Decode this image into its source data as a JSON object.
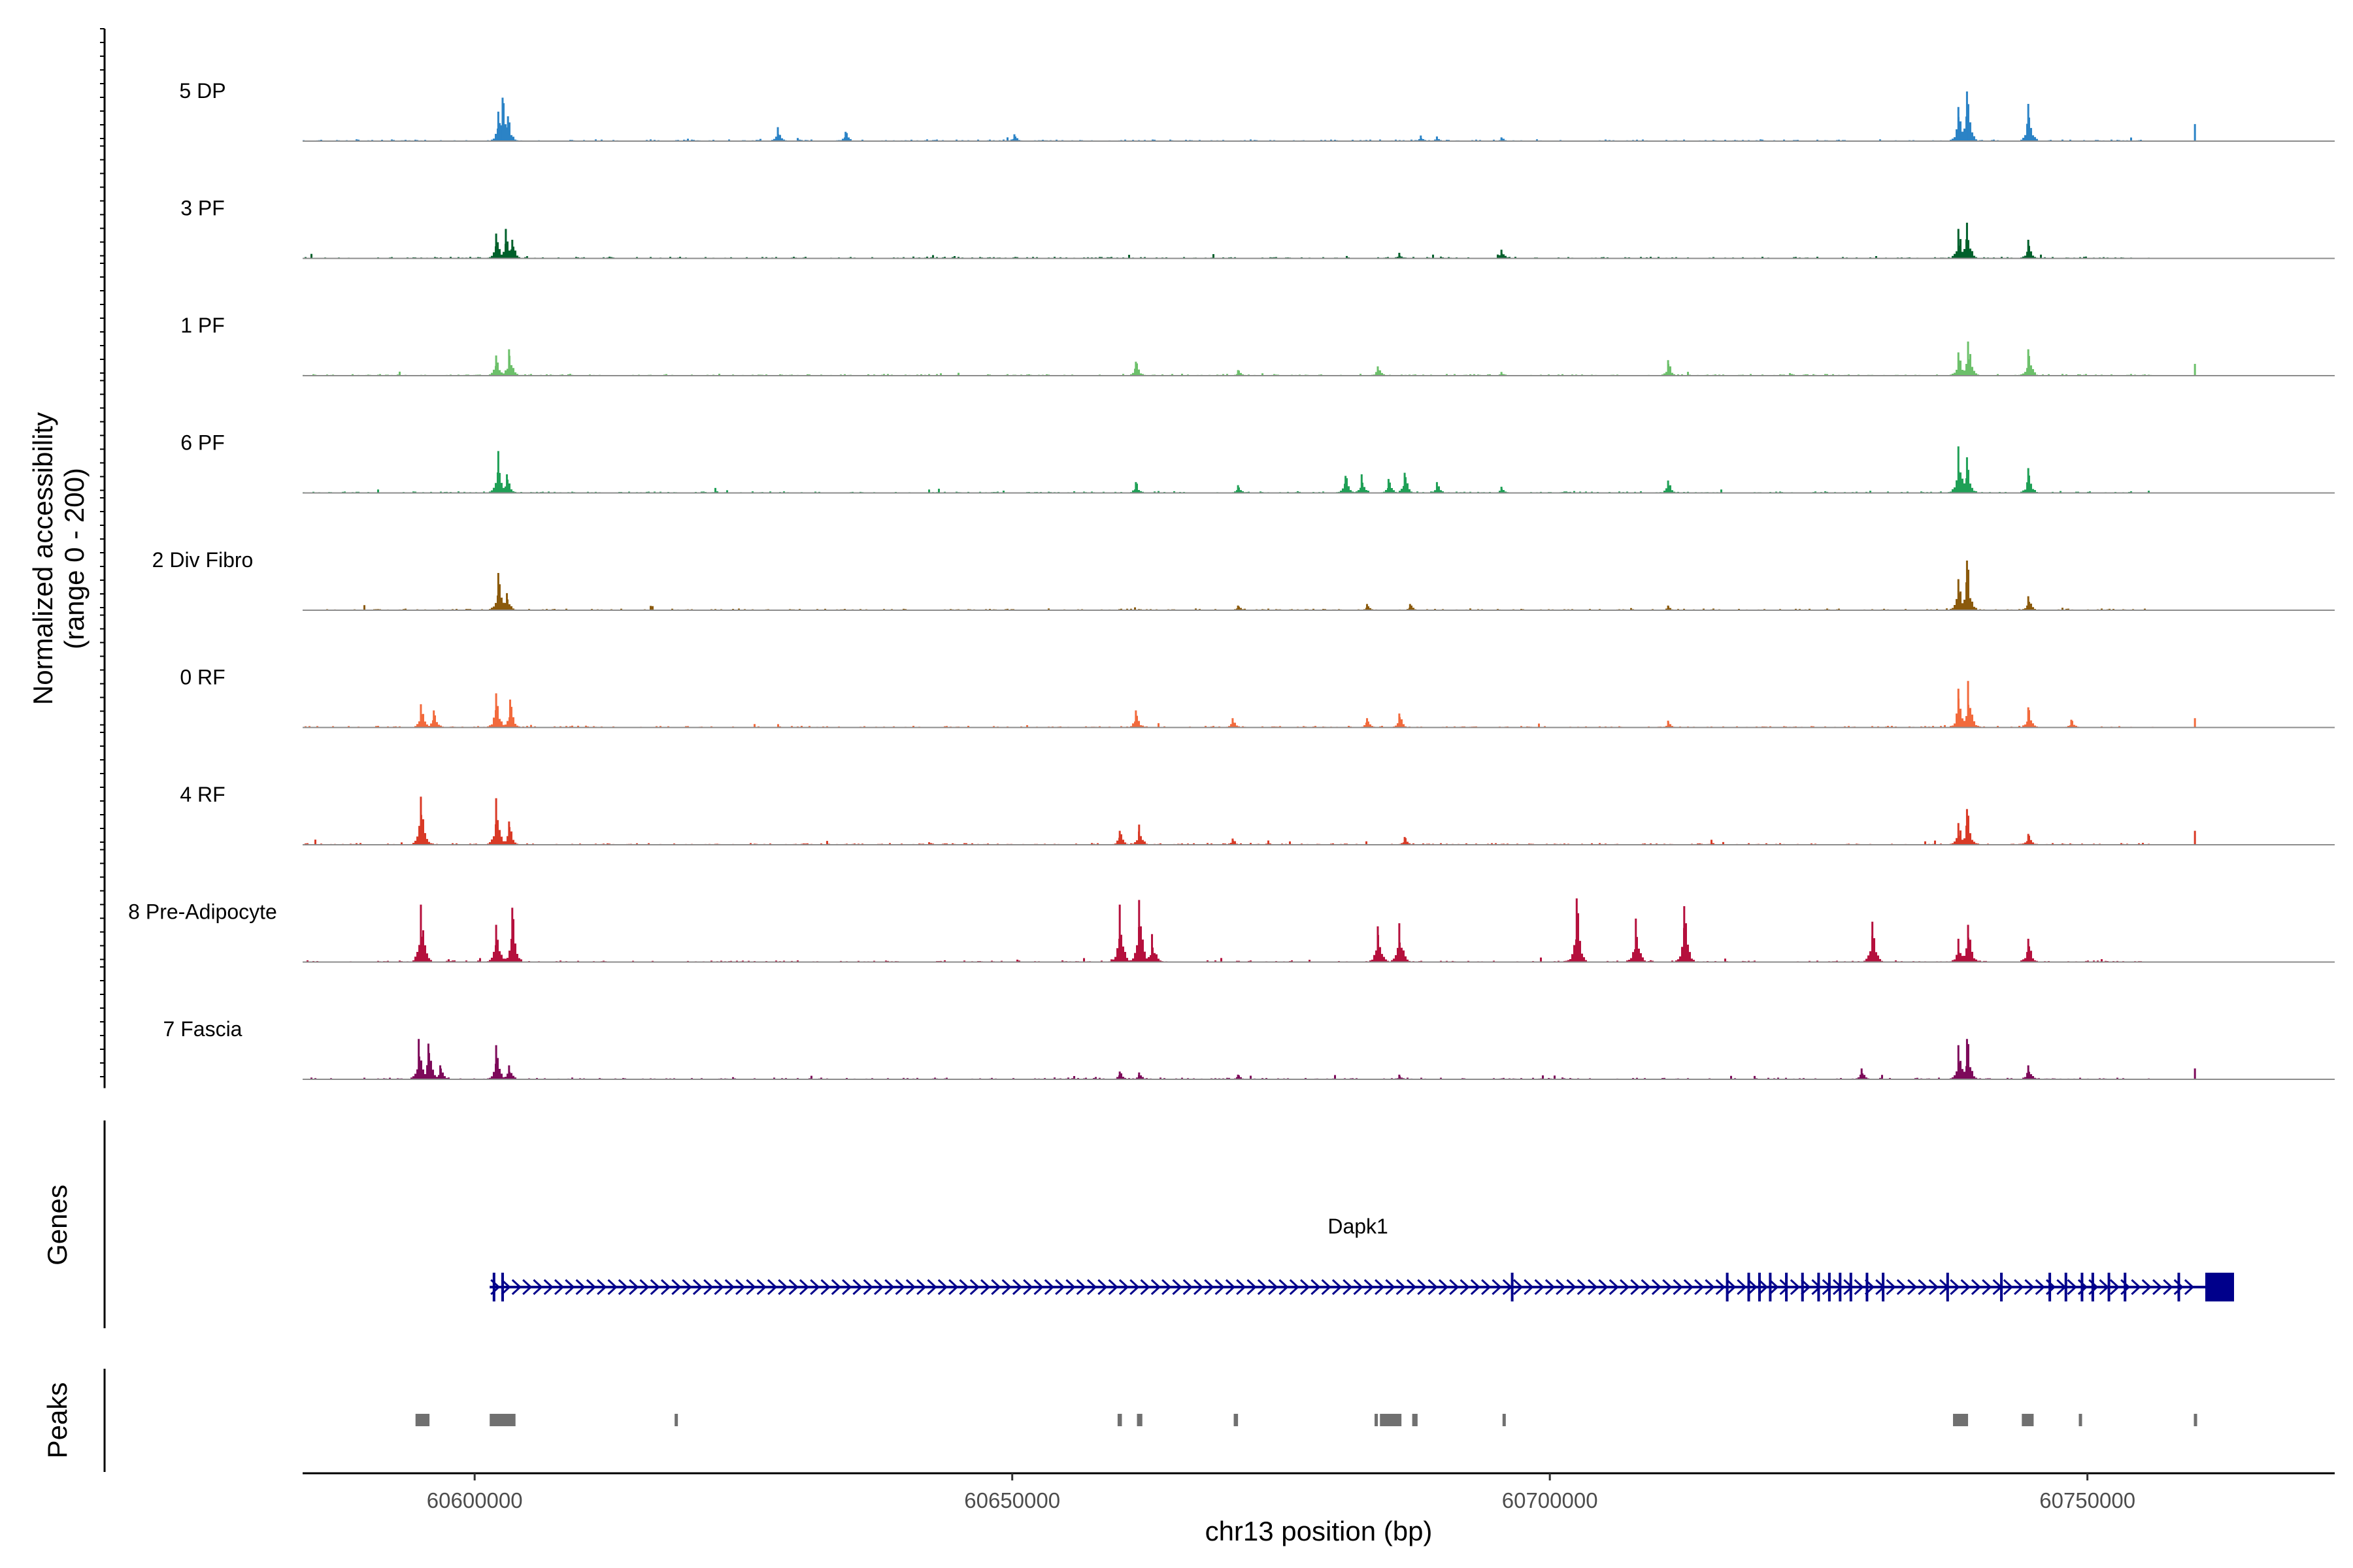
{
  "chart_data": {
    "type": "area",
    "title": "",
    "chromosome": "chr13",
    "xlabel": "chr13 position (bp)",
    "ylabel": "Normalized accessibility",
    "ylabel_range": "(range 0 - 200)",
    "ylim": [
      0,
      200
    ],
    "xlim": [
      60584000,
      60773000
    ],
    "x_ticks": [
      60600000,
      60650000,
      60700000,
      60750000
    ],
    "x_tick_labels": [
      "60600000",
      "60650000",
      "60700000",
      "60750000"
    ],
    "series": [
      {
        "name": "5 DP",
        "color": "#2b83c6",
        "peaks": [
          [
            60602200,
            95
          ],
          [
            60602600,
            140
          ],
          [
            60603100,
            80
          ],
          [
            60628200,
            45
          ],
          [
            60634500,
            30
          ],
          [
            60650200,
            22
          ],
          [
            60688000,
            18
          ],
          [
            60689500,
            15
          ],
          [
            60695500,
            12
          ],
          [
            60738000,
            110
          ],
          [
            60738800,
            160
          ],
          [
            60744500,
            120
          ],
          [
            60760000,
            55
          ]
        ]
      },
      {
        "name": "3 PF",
        "color": "#00602b",
        "peaks": [
          [
            60602000,
            80
          ],
          [
            60602900,
            95
          ],
          [
            60603500,
            60
          ],
          [
            60686000,
            18
          ],
          [
            60695500,
            28
          ],
          [
            60738000,
            95
          ],
          [
            60738800,
            115
          ],
          [
            60744500,
            60
          ]
        ]
      },
      {
        "name": "1 PF",
        "color": "#6cc06a",
        "peaks": [
          [
            60602000,
            65
          ],
          [
            60603200,
            85
          ],
          [
            60661500,
            45
          ],
          [
            60671000,
            18
          ],
          [
            60684000,
            30
          ],
          [
            60695500,
            12
          ],
          [
            60711000,
            50
          ],
          [
            60738000,
            75
          ],
          [
            60738900,
            110
          ],
          [
            60744500,
            85
          ],
          [
            60760000,
            38
          ]
        ]
      },
      {
        "name": "6 PF",
        "color": "#1fa056",
        "peaks": [
          [
            60602200,
            135
          ],
          [
            60603000,
            60
          ],
          [
            60661500,
            35
          ],
          [
            60671000,
            25
          ],
          [
            60681000,
            55
          ],
          [
            60682500,
            60
          ],
          [
            60685000,
            45
          ],
          [
            60686500,
            65
          ],
          [
            60689500,
            35
          ],
          [
            60695500,
            20
          ],
          [
            60711000,
            40
          ],
          [
            60738000,
            150
          ],
          [
            60738800,
            115
          ],
          [
            60744500,
            80
          ]
        ]
      },
      {
        "name": "2 Div Fibro",
        "color": "#8b5a0c",
        "peaks": [
          [
            60602200,
            120
          ],
          [
            60603000,
            55
          ],
          [
            60671000,
            15
          ],
          [
            60683000,
            20
          ],
          [
            60687000,
            20
          ],
          [
            60711000,
            15
          ],
          [
            60738000,
            100
          ],
          [
            60738800,
            160
          ],
          [
            60744500,
            45
          ]
        ]
      },
      {
        "name": "0 RF",
        "color": "#f26a3c",
        "peaks": [
          [
            60595000,
            75
          ],
          [
            60596200,
            55
          ],
          [
            60602000,
            110
          ],
          [
            60603300,
            90
          ],
          [
            60661500,
            55
          ],
          [
            60670500,
            30
          ],
          [
            60683000,
            30
          ],
          [
            60686000,
            45
          ],
          [
            60711000,
            22
          ],
          [
            60738000,
            125
          ],
          [
            60738900,
            150
          ],
          [
            60744500,
            65
          ],
          [
            60748500,
            25
          ],
          [
            60760000,
            30
          ]
        ]
      },
      {
        "name": "4 RF",
        "color": "#d93a26",
        "peaks": [
          [
            60595000,
            155
          ],
          [
            60602000,
            150
          ],
          [
            60603200,
            75
          ],
          [
            60660000,
            45
          ],
          [
            60661800,
            65
          ],
          [
            60670500,
            20
          ],
          [
            60686500,
            25
          ],
          [
            60738000,
            70
          ],
          [
            60738800,
            115
          ],
          [
            60744500,
            35
          ],
          [
            60760000,
            45
          ]
        ]
      },
      {
        "name": "8 Pre-Adipocyte",
        "color": "#b5103d",
        "peaks": [
          [
            60595000,
            185
          ],
          [
            60602000,
            120
          ],
          [
            60603500,
            175
          ],
          [
            60660000,
            185
          ],
          [
            60661800,
            200
          ],
          [
            60663000,
            90
          ],
          [
            60684000,
            115
          ],
          [
            60686000,
            125
          ],
          [
            60702500,
            205
          ],
          [
            60708000,
            140
          ],
          [
            60712500,
            180
          ],
          [
            60730000,
            130
          ],
          [
            60738000,
            75
          ],
          [
            60738900,
            120
          ],
          [
            60744500,
            75
          ]
        ]
      },
      {
        "name": "7 Fascia",
        "color": "#7d0a5a",
        "peaks": [
          [
            60594800,
            130
          ],
          [
            60595700,
            115
          ],
          [
            60596800,
            45
          ],
          [
            60602000,
            110
          ],
          [
            60603200,
            45
          ],
          [
            60660000,
            25
          ],
          [
            60661800,
            22
          ],
          [
            60671000,
            15
          ],
          [
            60686000,
            15
          ],
          [
            60729000,
            35
          ],
          [
            60738000,
            110
          ],
          [
            60738800,
            130
          ],
          [
            60744500,
            45
          ],
          [
            60760000,
            35
          ]
        ]
      }
    ],
    "genes_track": {
      "label": "Genes",
      "genes": [
        {
          "name": "Dapk1",
          "start": 60601400,
          "end": 60762300,
          "strand": "+",
          "color": "#00008b",
          "exons": [
            60601800,
            60602600,
            60696500,
            60716500,
            60718500,
            60719500,
            60720500,
            60722000,
            60723500,
            60725000,
            60726000,
            60727000,
            60728000,
            60729500,
            60731000,
            60737000,
            60742000,
            60746500,
            60748000,
            60749500,
            60750500,
            60752000,
            60753500,
            60758500
          ]
        }
      ]
    },
    "peaks_track": {
      "label": "Peaks",
      "color": "#707070",
      "regions": [
        [
          60594500,
          60595800
        ],
        [
          60601400,
          60603800
        ],
        [
          60618600,
          60618900
        ],
        [
          60659800,
          60660200
        ],
        [
          60661600,
          60662100
        ],
        [
          60670600,
          60671000
        ],
        [
          60683700,
          60683900
        ],
        [
          60684200,
          60686200
        ],
        [
          60687200,
          60687700
        ],
        [
          60695600,
          60695900
        ],
        [
          60737500,
          60738900
        ],
        [
          60743900,
          60745000
        ],
        [
          60749200,
          60749500
        ],
        [
          60759900,
          60760200
        ]
      ]
    }
  }
}
